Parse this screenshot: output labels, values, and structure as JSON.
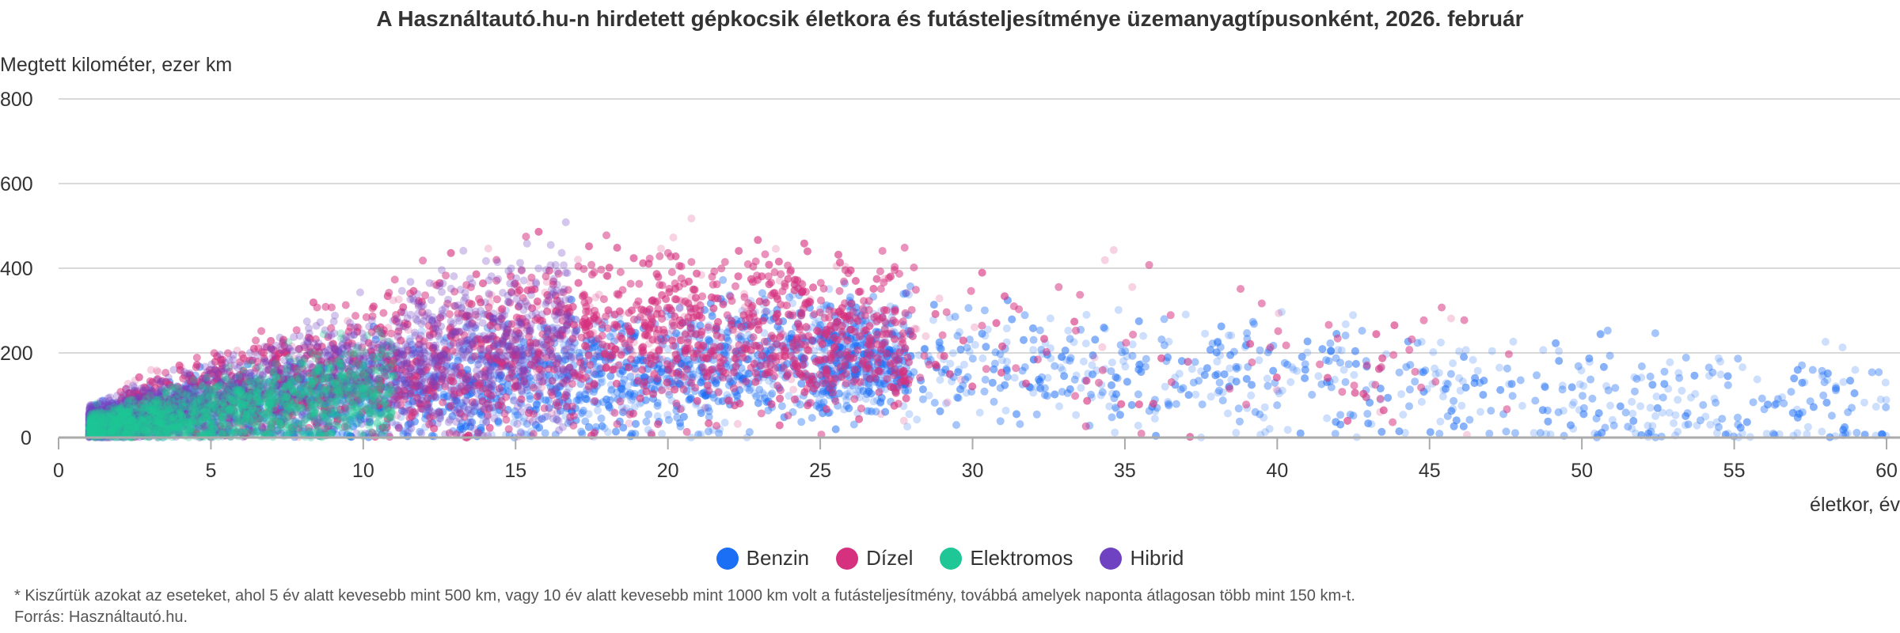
{
  "chart_data": {
    "type": "scatter",
    "title": "A Használtautó.hu-n hirdetett gépkocsik életkora és futásteljesítménye üzemanyagtípusonként, 2026. február",
    "ylabel": "Megtett kilométer, ezer km",
    "xlabel": "életkor, év",
    "xlim": [
      0,
      60
    ],
    "ylim": [
      0,
      800
    ],
    "x_ticks": [
      "0",
      "5",
      "10",
      "15",
      "20",
      "25",
      "30",
      "35",
      "40",
      "45",
      "50",
      "55",
      "60"
    ],
    "y_ticks": [
      "0",
      "200",
      "400",
      "600",
      "800"
    ],
    "grid": true,
    "legend_position": "bottom",
    "series": [
      {
        "name": "Benzin",
        "color": "#1a6ff5",
        "age_range": [
          1,
          60
        ],
        "km_typical": [
          0,
          300
        ],
        "peak_age": 20,
        "density": "high"
      },
      {
        "name": "Dízel",
        "color": "#d6317f",
        "age_range": [
          1,
          47
        ],
        "km_typical": [
          100,
          400
        ],
        "peak_age": 17,
        "density": "high"
      },
      {
        "name": "Elektromos",
        "color": "#1fc796",
        "age_range": [
          1,
          12
        ],
        "km_typical": [
          0,
          150
        ],
        "peak_age": 4,
        "density": "medium"
      },
      {
        "name": "Hibrid",
        "color": "#6f42c1",
        "age_range": [
          1,
          20
        ],
        "km_typical": [
          0,
          200
        ],
        "peak_age": 3,
        "density": "medium"
      }
    ]
  },
  "footnote": "* Kiszűrtük azokat az eseteket, ahol 5 év alatt kevesebb mint 500 km, vagy 10 év alatt kevesebb mint 1000 km volt a futásteljesítmény, továbbá amelyek naponta átlagosan több mint 150 km-t.",
  "source": "Forrás: Használtautó.hu."
}
